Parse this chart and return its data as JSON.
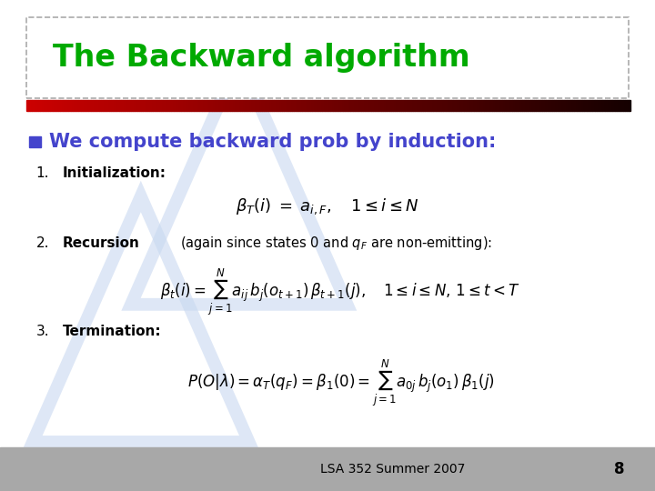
{
  "title": "The Backward algorithm",
  "title_color": "#00aa00",
  "background_color": "#ffffff",
  "footer_text": "LSA 352 Summer 2007",
  "footer_page": "8",
  "bullet_color": "#4444cc",
  "bullet_text": "We compute backward prob by induction:",
  "bullet_square_color": "#4444cc",
  "watermark_color": "#c8d8f0",
  "item1_label": "Initialization:",
  "item2_label": "Recursion",
  "item2_rest": " (again since states 0 and $q_F$ are non-emitting):",
  "item3_label": "Termination:"
}
